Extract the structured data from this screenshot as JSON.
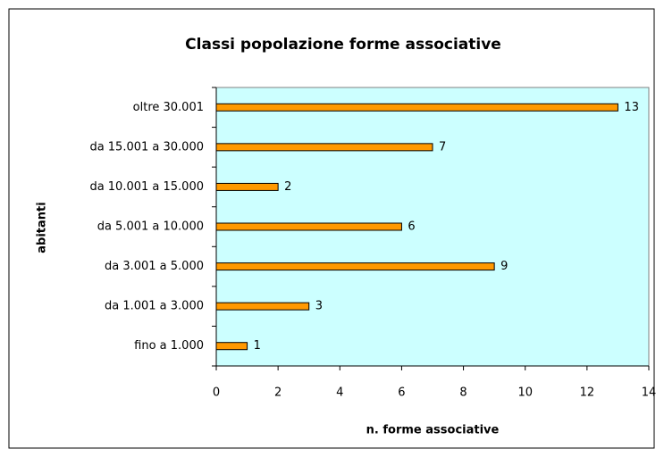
{
  "chart_data": {
    "type": "hbar",
    "title": "Classi popolazione forme associative",
    "categories": [
      "oltre 30.001",
      "da 15.001 a 30.000",
      "da 10.001 a 15.000",
      "da 5.001 a 10.000",
      "da 3.001 a 5.000",
      "da 1.001 a 3.000",
      "fino a 1.000"
    ],
    "values": [
      13,
      7,
      2,
      6,
      9,
      3,
      1
    ],
    "color": "#ff9900",
    "plot_background": "#ccffff",
    "xlabel": "n. forme associative",
    "ylabel": "abitanti",
    "xlim": [
      0,
      14
    ],
    "xticks": [
      0,
      2,
      4,
      6,
      8,
      10,
      12,
      14
    ],
    "grid": false
  }
}
